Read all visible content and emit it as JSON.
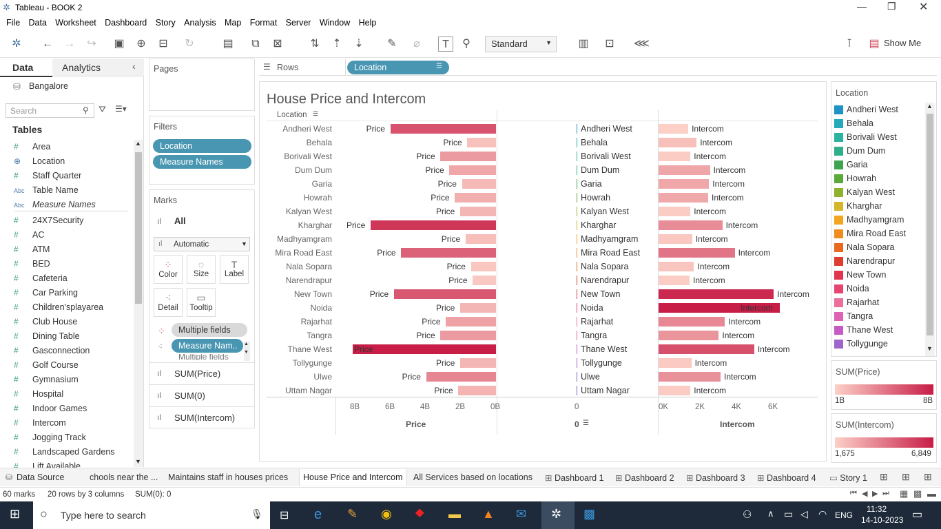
{
  "window": {
    "title": "Tableau - BOOK 2"
  },
  "menu": [
    "File",
    "Data",
    "Worksheet",
    "Dashboard",
    "Story",
    "Analysis",
    "Map",
    "Format",
    "Server",
    "Window",
    "Help"
  ],
  "toolbar": {
    "fit": "Standard",
    "show_me": "Show Me"
  },
  "sidebar": {
    "tab_data": "Data",
    "tab_analytics": "Analytics",
    "datasource": "Bangalore",
    "search_placeholder": "Search",
    "tables_heading": "Tables",
    "fields": [
      {
        "icon": "#",
        "name": "Area"
      },
      {
        "icon": "⊕",
        "name": "Location"
      },
      {
        "icon": "#",
        "name": "Staff Quarter"
      },
      {
        "icon": "Abc",
        "name": "Table Name"
      },
      {
        "icon": "Abc",
        "name": "Measure Names"
      },
      {
        "icon": "#",
        "name": "24X7Security"
      },
      {
        "icon": "#",
        "name": "AC"
      },
      {
        "icon": "#",
        "name": "ATM"
      },
      {
        "icon": "#",
        "name": "BED"
      },
      {
        "icon": "#",
        "name": "Cafeteria"
      },
      {
        "icon": "#",
        "name": "Car Parking"
      },
      {
        "icon": "#",
        "name": "Children'splayarea"
      },
      {
        "icon": "#",
        "name": "Club House"
      },
      {
        "icon": "#",
        "name": "Dining Table"
      },
      {
        "icon": "#",
        "name": "Gasconnection"
      },
      {
        "icon": "#",
        "name": "Golf Course"
      },
      {
        "icon": "#",
        "name": "Gymnasium"
      },
      {
        "icon": "#",
        "name": "Hospital"
      },
      {
        "icon": "#",
        "name": "Indoor Games"
      },
      {
        "icon": "#",
        "name": "Intercom"
      },
      {
        "icon": "#",
        "name": "Jogging Track"
      },
      {
        "icon": "#",
        "name": "Landscaped Gardens"
      },
      {
        "icon": "#",
        "name": "Lift Available"
      }
    ]
  },
  "pages": {
    "title": "Pages"
  },
  "filters": {
    "title": "Filters",
    "items": [
      "Location",
      "Measure Names"
    ]
  },
  "marks": {
    "title": "Marks",
    "all": "All",
    "type": "Automatic",
    "buttons": [
      "Color",
      "Size",
      "Label",
      "Detail",
      "Tooltip"
    ],
    "pills": [
      "Multiple fields",
      "Measure Nam..",
      "Multiple fields"
    ],
    "cards": [
      "SUM(Price)",
      "SUM(0)",
      "SUM(Intercom)"
    ]
  },
  "shelf": {
    "rows_label": "Rows",
    "rows_pill": "Location"
  },
  "viz": {
    "title": "House Price and Intercom",
    "location_header": "Location",
    "price_axis_title": "Price",
    "zero_axis_title": "0",
    "intercom_axis_title": "Intercom",
    "zero_tick": "0",
    "price_ticks": [
      "8B",
      "6B",
      "4B",
      "2B",
      "0B"
    ],
    "intercom_ticks": [
      "0K",
      "2K",
      "4K",
      "6K"
    ],
    "bar_label_price": "Price",
    "bar_label_intercom": "Intercom"
  },
  "chart_data": {
    "type": "bar",
    "title": "House Price and Intercom",
    "xlabel": "",
    "ylabel": "Location",
    "categories": [
      "Andheri West",
      "Behala",
      "Borivali West",
      "Dum Dum",
      "Garia",
      "Howrah",
      "Kalyan West",
      "Kharghar",
      "Madhyamgram",
      "Mira Road East",
      "Nala Sopara",
      "Narendrapur",
      "New Town",
      "Noida",
      "Rajarhat",
      "Tangra",
      "Thane West",
      "Tollygunge",
      "Ulwe",
      "Uttam Nagar"
    ],
    "series": [
      {
        "name": "Price",
        "values": [
          5.9,
          1.6,
          3.1,
          2.6,
          1.9,
          2.3,
          2.0,
          7.0,
          1.7,
          5.3,
          1.4,
          1.3,
          5.7,
          2.0,
          2.8,
          3.1,
          8.0,
          2.0,
          3.9,
          2.1
        ],
        "unit": "B",
        "range": [
          1,
          8
        ]
      },
      {
        "name": "Intercom",
        "values": [
          1675,
          2150,
          1800,
          2900,
          2850,
          2800,
          1800,
          3600,
          1900,
          4300,
          2000,
          1750,
          6500,
          6849,
          3750,
          3400,
          5400,
          1850,
          3500,
          1800
        ],
        "unit": "",
        "range": [
          1675,
          6849
        ]
      }
    ]
  },
  "legend": {
    "title": "Location",
    "items": [
      {
        "name": "Andheri West",
        "color": "#1f93c4"
      },
      {
        "name": "Behala",
        "color": "#23a9b8"
      },
      {
        "name": "Borivali West",
        "color": "#2bb3a0"
      },
      {
        "name": "Dum Dum",
        "color": "#2fae8b"
      },
      {
        "name": "Garia",
        "color": "#3fa34f"
      },
      {
        "name": "Howrah",
        "color": "#5ba83b"
      },
      {
        "name": "Kalyan West",
        "color": "#8fb22e"
      },
      {
        "name": "Kharghar",
        "color": "#d5b52a"
      },
      {
        "name": "Madhyamgram",
        "color": "#f2a51d"
      },
      {
        "name": "Mira Road East",
        "color": "#f08b1e"
      },
      {
        "name": "Nala Sopara",
        "color": "#ea6920"
      },
      {
        "name": "Narendrapur",
        "color": "#de3e30"
      },
      {
        "name": "New Town",
        "color": "#e0354d"
      },
      {
        "name": "Noida",
        "color": "#e7456f"
      },
      {
        "name": "Rajarhat",
        "color": "#eb6e9c"
      },
      {
        "name": "Tangra",
        "color": "#dd62b4"
      },
      {
        "name": "Thane West",
        "color": "#c65bc6"
      },
      {
        "name": "Tollygunge",
        "color": "#a063cc"
      },
      {
        "name": "Ulwe",
        "color": "#7b61c6"
      }
    ]
  },
  "price_legend": {
    "title": "SUM(Price)",
    "min": "1B",
    "max": "8B"
  },
  "intercom_legend": {
    "title": "SUM(Intercom)",
    "min": "1,675",
    "max": "6,849"
  },
  "tabs": [
    "Data Source",
    "chools near the ...",
    "Maintains staff in houses prices",
    "House Price and Intercom",
    "All Services based on locations",
    "Dashboard 1",
    "Dashboard 2",
    "Dashboard 3",
    "Dashboard 4",
    "Story 1"
  ],
  "status": {
    "marks": "60 marks",
    "rows": "20 rows by 3 columns",
    "sum": "SUM(0): 0"
  },
  "taskbar": {
    "search_placeholder": "Type here to search",
    "lang": "ENG",
    "time": "11:32",
    "date": "14-10-2023"
  }
}
